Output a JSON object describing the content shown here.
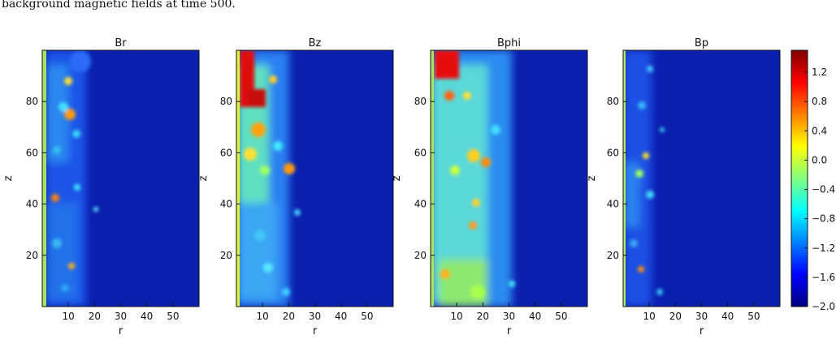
{
  "caption_fragment": "background magnetic fields at time 500.",
  "panel_titles": [
    "Br",
    "Bz",
    "Bphi",
    "Bp"
  ],
  "chart_data": [
    {
      "type": "heatmap",
      "title": "Br",
      "xlabel": "r",
      "ylabel": "z",
      "xlim": [
        0,
        60
      ],
      "ylim": [
        0,
        100
      ],
      "xticks": [
        10,
        20,
        30,
        40,
        50
      ],
      "yticks": [
        20,
        40,
        60,
        80
      ],
      "colormap": "jet",
      "clim": [
        -2.0,
        1.5
      ],
      "structure": "turbulent vortices confined near r < 25; uniform low values beyond"
    },
    {
      "type": "heatmap",
      "title": "Bz",
      "xlabel": "r",
      "ylabel": "z",
      "xlim": [
        0,
        60
      ],
      "ylim": [
        0,
        100
      ],
      "xticks": [
        10,
        20,
        30,
        40,
        50
      ],
      "yticks": [
        20,
        40,
        60,
        80
      ],
      "colormap": "jet",
      "clim": [
        -2.0,
        1.5
      ],
      "structure": "strong values near axis, maximum at upper left (z > 80, r < 10)"
    },
    {
      "type": "heatmap",
      "title": "Bphi",
      "xlabel": "r",
      "ylabel": "z",
      "xlim": [
        0,
        60
      ],
      "ylim": [
        0,
        100
      ],
      "xticks": [
        10,
        20,
        30,
        40,
        50
      ],
      "yticks": [
        20,
        40,
        60,
        80
      ],
      "colormap": "jet",
      "clim": [
        -2.0,
        1.5
      ],
      "structure": "broad turbulent region r < 30, maximum at top left"
    },
    {
      "type": "heatmap",
      "title": "Bp",
      "xlabel": "r",
      "ylabel": "z",
      "xlim": [
        0,
        60
      ],
      "ylim": [
        0,
        100
      ],
      "xticks": [
        10,
        20,
        30,
        40,
        50
      ],
      "yticks": [
        20,
        40,
        60,
        80
      ],
      "colormap": "jet",
      "clim": [
        -2.0,
        1.5
      ],
      "structure": "mostly low values, weak vortices near r < 20"
    }
  ],
  "colorbar": {
    "ticks": [
      "1.2",
      "0.8",
      "0.4",
      "0.0",
      "−0.4",
      "−0.8",
      "−1.2",
      "−1.6",
      "−2.0"
    ],
    "values": [
      1.2,
      0.8,
      0.4,
      0.0,
      -0.4,
      -0.8,
      -1.2,
      -1.6,
      -2.0
    ],
    "min": -2.0,
    "max": 1.5,
    "colormap": "jet"
  },
  "colors": {
    "background_field": "#0a1fae",
    "axis_strip": "#a8e060"
  }
}
